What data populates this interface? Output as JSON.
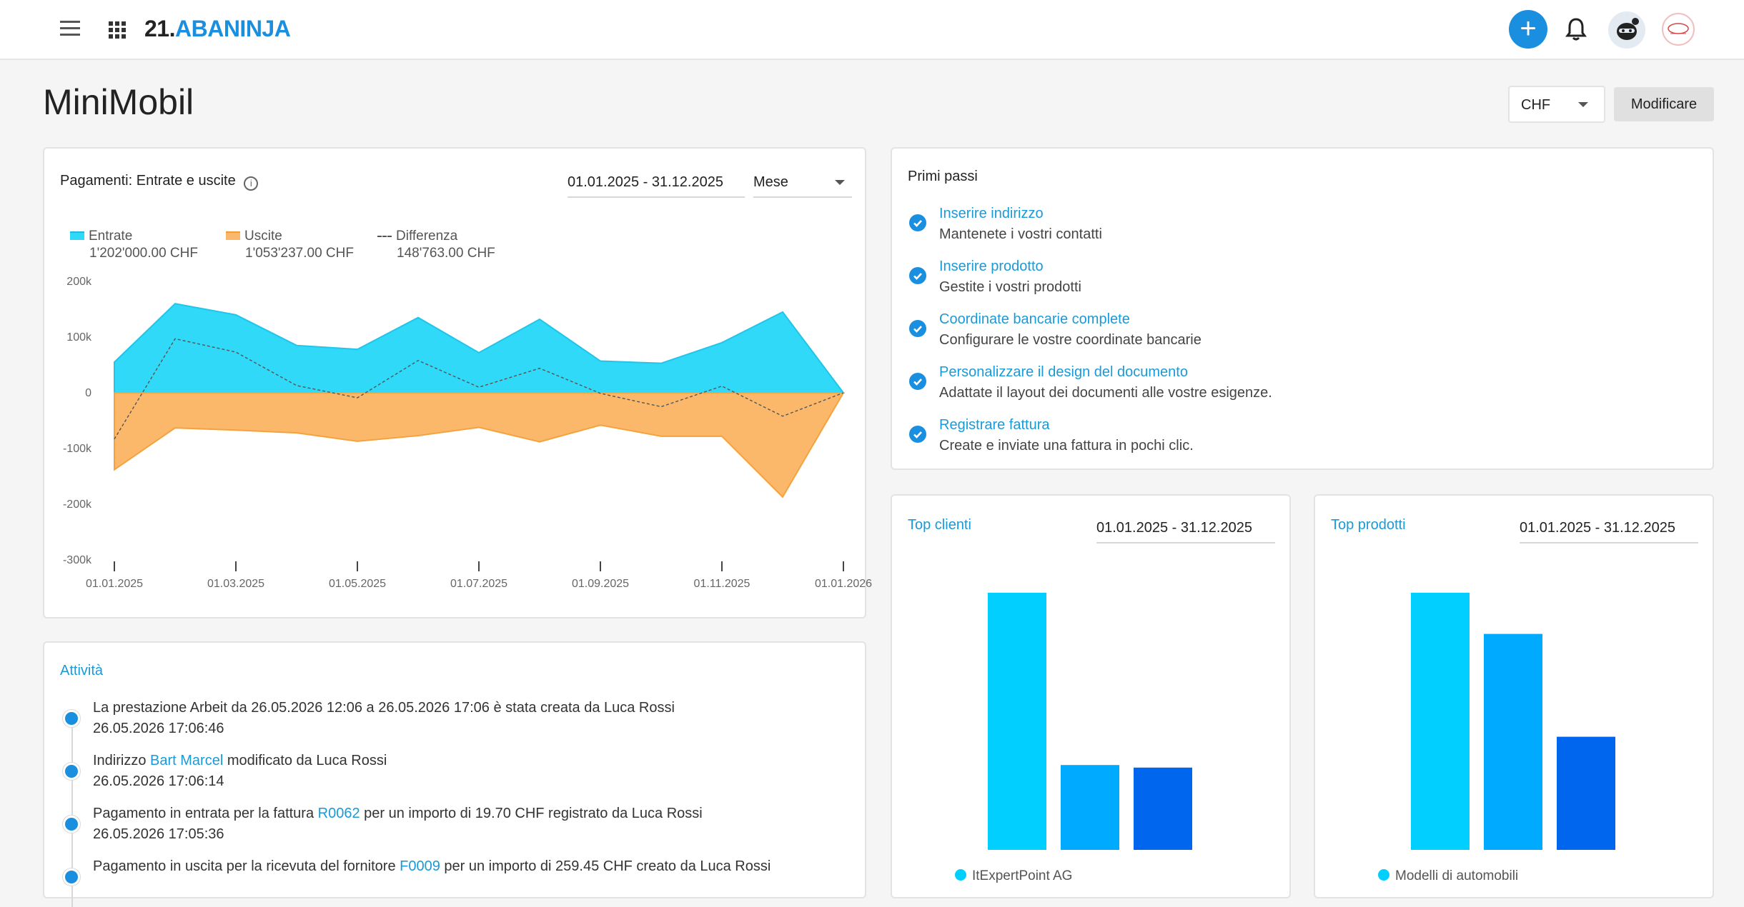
{
  "app": {
    "logo_prefix": "21.",
    "logo_name": "ABANINJA",
    "page_title": "MiniMobil",
    "currency_select": "CHF",
    "edit_button": "Modificare"
  },
  "payments_card": {
    "title": "Pagamenti: Entrate e uscite",
    "date_range": "01.01.2025 - 31.12.2025",
    "period": "Mese",
    "legend": [
      {
        "name": "Entrate",
        "amount": "1'202'000.00 CHF",
        "color": "#2fd9f7"
      },
      {
        "name": "Uscite",
        "amount": "1'053'237.00 CHF",
        "color": "#fbb86a"
      },
      {
        "name": "Differenza",
        "amount": "148'763.00 CHF",
        "color": "#555555"
      }
    ]
  },
  "chart_data": {
    "type": "area",
    "title": "Pagamenti: Entrate e uscite",
    "y_ticks": [
      "200k",
      "100k",
      "0",
      "-100k",
      "-200k",
      "-300k"
    ],
    "ylim": [
      -300000,
      200000
    ],
    "x_ticks": [
      "01.01.2025",
      "01.03.2025",
      "01.05.2025",
      "01.07.2025",
      "01.09.2025",
      "01.11.2025",
      "01.01.2026"
    ],
    "x": [
      "01.01.2025",
      "01.02.2025",
      "01.03.2025",
      "01.04.2025",
      "01.05.2025",
      "01.06.2025",
      "01.07.2025",
      "01.08.2025",
      "01.09.2025",
      "01.10.2025",
      "01.11.2025",
      "01.12.2025",
      "01.01.2026"
    ],
    "series": [
      {
        "name": "Entrate",
        "values": [
          55000,
          160000,
          140000,
          85000,
          78000,
          135000,
          72000,
          132000,
          57000,
          53000,
          90000,
          145000,
          0
        ]
      },
      {
        "name": "Uscite",
        "values": [
          -138000,
          -63000,
          -67000,
          -72000,
          -87000,
          -77000,
          -62000,
          -88000,
          -58000,
          -78000,
          -78000,
          -187000,
          0
        ]
      },
      {
        "name": "Differenza",
        "values": [
          -83000,
          97000,
          73000,
          13000,
          -9000,
          58000,
          10000,
          44000,
          -1000,
          -25000,
          12000,
          -42000,
          0
        ]
      }
    ]
  },
  "first_steps": {
    "title": "Primi passi",
    "items": [
      {
        "link": "Inserire indirizzo",
        "desc": "Mantenete i vostri contatti"
      },
      {
        "link": "Inserire prodotto",
        "desc": "Gestite i vostri prodotti"
      },
      {
        "link": "Coordinate bancarie complete",
        "desc": "Configurare le vostre coordinate bancarie"
      },
      {
        "link": "Personalizzare il design del documento",
        "desc": "Adattate il layout dei documenti alle vostre esigenze."
      },
      {
        "link": "Registrare fattura",
        "desc": "Create e inviate una fattura in pochi clic."
      }
    ]
  },
  "activity": {
    "title": "Attività",
    "items": [
      {
        "before": "La prestazione Arbeit da 26.05.2026 12:06 a 26.05.2026 17:06 è stata creata da Luca Rossi",
        "link": "",
        "after": "",
        "time": "26.05.2026 17:06:46"
      },
      {
        "before": "Indirizzo ",
        "link": "Bart Marcel",
        "after": " modificato da Luca Rossi",
        "time": "26.05.2026 17:06:14"
      },
      {
        "before": "Pagamento in entrata per la fattura ",
        "link": "R0062",
        "after": " per un importo di 19.70 CHF registrato da Luca Rossi",
        "time": "26.05.2026 17:05:36"
      },
      {
        "before": "Pagamento in uscita per la ricevuta del fornitore ",
        "link": "F0009",
        "after": " per un importo di 259.45 CHF creato da Luca Rossi",
        "time": ""
      }
    ]
  },
  "top_clients": {
    "title": "Top clienti",
    "date_range": "01.01.2025 - 31.12.2025",
    "legend_first": "ItExpertPoint AG",
    "chart_data": {
      "type": "bar",
      "values": [
        100,
        33,
        32
      ],
      "colors": [
        "#00cfff",
        "#00aaff",
        "#0066ee"
      ]
    }
  },
  "top_products": {
    "title": "Top prodotti",
    "date_range": "01.01.2025 - 31.12.2025",
    "legend_first": "Modelli di automobili",
    "chart_data": {
      "type": "bar",
      "values": [
        100,
        84,
        44
      ],
      "colors": [
        "#00cfff",
        "#00aaff",
        "#0066ee"
      ]
    }
  }
}
